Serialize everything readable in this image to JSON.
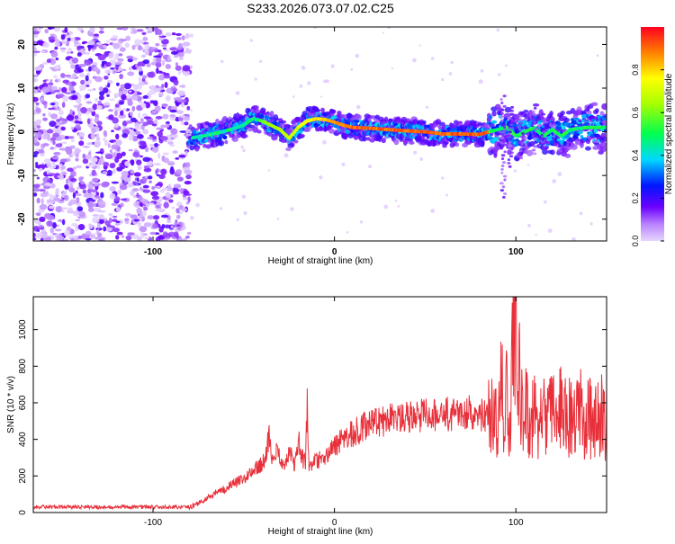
{
  "figure": {
    "title": "S233.2026.073.07.02.C25"
  },
  "chart_data": [
    {
      "type": "heatmap",
      "xlabel": "Height of straight line (km)",
      "ylabel": "Frequency (Hz)",
      "xlim": [
        -166,
        150
      ],
      "ylim": [
        -25,
        24
      ],
      "x_ticks": [
        -100,
        0,
        100
      ],
      "y_ticks": [
        -20,
        -10,
        0,
        10,
        20
      ],
      "ridge": {
        "x": [
          -80,
          -70,
          -60,
          -50,
          -45,
          -40,
          -35,
          -30,
          -25,
          -20,
          -15,
          -10,
          -5,
          0,
          5,
          10,
          20,
          30,
          40,
          50,
          60,
          70,
          80,
          85,
          90,
          95,
          100,
          105,
          110,
          115,
          120,
          125,
          130,
          135,
          140,
          145,
          150
        ],
        "y": [
          -1.5,
          -0.8,
          0.2,
          1.5,
          3,
          2.5,
          1.5,
          0.5,
          -1.5,
          1,
          2.5,
          3,
          2.8,
          2.2,
          1.5,
          1,
          0.8,
          0.5,
          0.2,
          0,
          -0.5,
          -0.5,
          -0.6,
          0,
          0.5,
          1,
          -1,
          0,
          1,
          -1,
          0.5,
          -1,
          0.5,
          0.8,
          1,
          1,
          1
        ]
      },
      "colorbar": {
        "label": "Normalized spectral amplitude",
        "range": [
          0,
          1
        ],
        "ticks": [
          0.0,
          0.2,
          0.4,
          0.6,
          0.8
        ]
      }
    },
    {
      "type": "line",
      "xlabel": "Height of straight line (km)",
      "ylabel": "SNR (10 * v/v)",
      "xlim": [
        -166,
        150
      ],
      "ylim": [
        0,
        1180
      ],
      "x_ticks": [
        -100,
        0,
        100
      ],
      "y_ticks": [
        0,
        200,
        400,
        600,
        800,
        1000
      ],
      "series": [
        {
          "color": "#e8303a",
          "x": [
            -166,
            -150,
            -130,
            -110,
            -90,
            -80,
            -75,
            -70,
            -65,
            -60,
            -55,
            -50,
            -45,
            -40,
            -38,
            -36,
            -34,
            -32,
            -30,
            -28,
            -26,
            -24,
            -22,
            -20,
            -18,
            -16,
            -15,
            -14,
            -12,
            -10,
            -5,
            0,
            5,
            10,
            15,
            20,
            25,
            30,
            35,
            40,
            45,
            50,
            55,
            60,
            65,
            70,
            75,
            80,
            85,
            88,
            90,
            92,
            94,
            95,
            96,
            98,
            99,
            100,
            101,
            102,
            104,
            106,
            108,
            110,
            112,
            115,
            118,
            120,
            125,
            130,
            135,
            140,
            145,
            150
          ],
          "y": [
            30,
            30,
            30,
            30,
            30,
            30,
            50,
            80,
            110,
            130,
            160,
            190,
            230,
            270,
            300,
            430,
            250,
            330,
            290,
            260,
            300,
            320,
            260,
            400,
            310,
            260,
            600,
            250,
            260,
            280,
            320,
            360,
            400,
            430,
            460,
            480,
            500,
            510,
            520,
            530,
            530,
            540,
            540,
            540,
            540,
            540,
            550,
            530,
            540,
            600,
            400,
            820,
            450,
            700,
            300,
            850,
            950,
            1180,
            500,
            800,
            450,
            700,
            350,
            600,
            400,
            650,
            500,
            550,
            600,
            500,
            550,
            500,
            550,
            500
          ]
        }
      ]
    }
  ]
}
